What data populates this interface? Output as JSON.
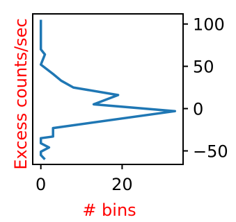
{
  "chart_data": {
    "type": "line",
    "orientation": "horizontal",
    "xlabel": "# bins",
    "ylabel": "Excess counts/sec",
    "label_color": "#ff0000",
    "line_color": "#1f77b4",
    "xlim": [
      -2,
      35
    ],
    "ylim": [
      -66,
      112
    ],
    "x_ticks": [
      0,
      20
    ],
    "y_ticks": [
      100,
      50,
      0,
      -50
    ],
    "y_axis_side": "right",
    "grid": false,
    "legend": "none",
    "points": [
      {
        "x": 0,
        "y": 105
      },
      {
        "x": 0,
        "y": 70
      },
      {
        "x": 1,
        "y": 64
      },
      {
        "x": 0,
        "y": 52
      },
      {
        "x": 3,
        "y": 41
      },
      {
        "x": 5,
        "y": 33
      },
      {
        "x": 8,
        "y": 25
      },
      {
        "x": 19,
        "y": 16
      },
      {
        "x": 13,
        "y": 5
      },
      {
        "x": 33,
        "y": -3
      },
      {
        "x": 3,
        "y": -23
      },
      {
        "x": 3,
        "y": -33
      },
      {
        "x": 0,
        "y": -35
      },
      {
        "x": 0,
        "y": -41
      },
      {
        "x": 2,
        "y": -46
      },
      {
        "x": 0,
        "y": -51
      },
      {
        "x": 0,
        "y": -55
      },
      {
        "x": 1,
        "y": -60
      }
    ]
  }
}
